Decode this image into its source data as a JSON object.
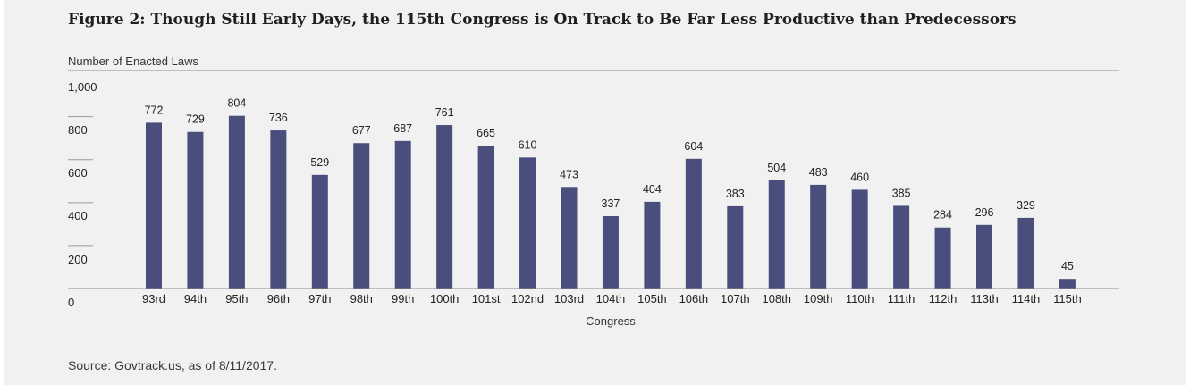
{
  "figure": {
    "title": "Figure 2: Though Still Early Days, the 115th Congress is On Track to Be Far Less Productive than Predecessors",
    "source": "Source: Govtrack.us, as of 8/11/2017."
  },
  "chart_data": {
    "type": "bar",
    "title": "Figure 2: Though Still Early Days, the 115th Congress is On Track to Be Far Less Productive than Predecessors",
    "ylabel": "Number of Enacted Laws",
    "xlabel": "Congress",
    "ylim": [
      0,
      1000
    ],
    "yticks": [
      0,
      200,
      400,
      600,
      800,
      1000
    ],
    "ytick_labels": [
      "0",
      "200",
      "400",
      "600",
      "800",
      "1,000"
    ],
    "bar_color": "#4a4e7c",
    "grid": false,
    "legend": "none",
    "categories": [
      "93rd",
      "94th",
      "95th",
      "96th",
      "97th",
      "98th",
      "99th",
      "100th",
      "101st",
      "102nd",
      "103rd",
      "104th",
      "105th",
      "106th",
      "107th",
      "108th",
      "109th",
      "110th",
      "111th",
      "112th",
      "113th",
      "114th",
      "115th"
    ],
    "values": [
      772,
      729,
      804,
      736,
      529,
      677,
      687,
      761,
      665,
      610,
      473,
      337,
      404,
      604,
      383,
      504,
      483,
      460,
      385,
      284,
      296,
      329,
      45
    ]
  }
}
